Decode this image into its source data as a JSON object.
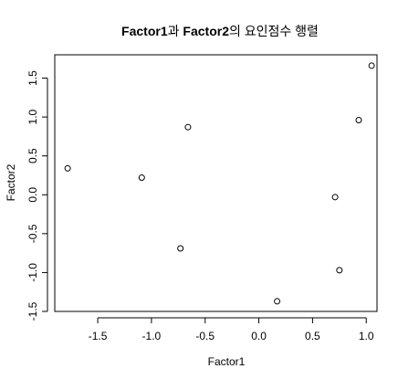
{
  "chart_data": {
    "type": "scatter",
    "title_parts": [
      {
        "text": "Factor1",
        "bold": true
      },
      {
        "text": "과 ",
        "bold": false
      },
      {
        "text": "Factor2",
        "bold": true
      },
      {
        "text": "의 요인점수 행렬",
        "bold": false
      }
    ],
    "xlabel": "Factor1",
    "ylabel": "Factor2",
    "xlim": [
      -1.9,
      1.1
    ],
    "ylim": [
      -1.5,
      1.8
    ],
    "xticks": [
      -1.5,
      -1.0,
      -0.5,
      0.0,
      0.5,
      1.0
    ],
    "xtick_labels": [
      "-1.5",
      "-1.0",
      "-0.5",
      "0.0",
      "0.5",
      "1.0"
    ],
    "yticks": [
      -1.5,
      -1.0,
      -0.5,
      0.0,
      0.5,
      1.0,
      1.5
    ],
    "ytick_labels": [
      "-1.5",
      "-1.0",
      "-0.5",
      "0.0",
      "0.5",
      "1.0",
      "1.5"
    ],
    "grid": false,
    "marker": "open-circle",
    "point_color": "#000000",
    "points": [
      {
        "x": -1.78,
        "y": 0.34
      },
      {
        "x": -1.09,
        "y": 0.22
      },
      {
        "x": -0.66,
        "y": 0.87
      },
      {
        "x": -0.73,
        "y": -0.69
      },
      {
        "x": 0.17,
        "y": -1.37
      },
      {
        "x": 0.71,
        "y": -0.03
      },
      {
        "x": 0.75,
        "y": -0.97
      },
      {
        "x": 0.93,
        "y": 0.96
      },
      {
        "x": 1.05,
        "y": 1.66
      }
    ]
  }
}
